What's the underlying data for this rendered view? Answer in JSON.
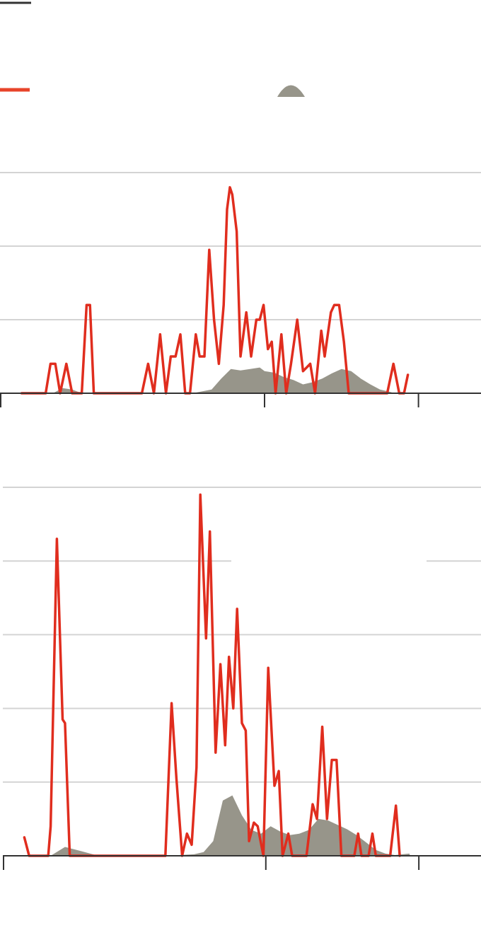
{
  "colors": {
    "line": "#e02d1e",
    "area": "#97958a",
    "grid": "#d4d4d4",
    "axis": "#333333",
    "legend_swatch_black": "#333333",
    "legend_swatch_red": "#e8442a"
  },
  "legend": {
    "items": [
      {
        "swatch": "black-line",
        "label": ""
      },
      {
        "swatch": "red-line",
        "label": ""
      },
      {
        "swatch": "gray-area",
        "label": ""
      }
    ]
  },
  "chart_data": [
    {
      "type": "line",
      "title": "",
      "xlabel": "",
      "ylabel": "",
      "ylim": [
        0,
        3
      ],
      "xlim": [
        0,
        100
      ],
      "grid": true,
      "x_ticks": [
        0,
        55,
        87
      ],
      "series": [
        {
          "kind": "line",
          "color": "#e02d1e",
          "points": [
            [
              4.5,
              0
            ],
            [
              9.5,
              0
            ],
            [
              10.5,
              0.4
            ],
            [
              11.5,
              0.4
            ],
            [
              12.5,
              0
            ],
            [
              13.8,
              0.4
            ],
            [
              15,
              0
            ],
            [
              17,
              0
            ],
            [
              18,
              1.2
            ],
            [
              18.7,
              1.2
            ],
            [
              19.5,
              0
            ],
            [
              29.5,
              0
            ],
            [
              30.8,
              0.4
            ],
            [
              32,
              0
            ],
            [
              33.3,
              0.8
            ],
            [
              34.5,
              0
            ],
            [
              35.5,
              0.5
            ],
            [
              36.5,
              0.5
            ],
            [
              37.5,
              0.8
            ],
            [
              38.5,
              0
            ],
            [
              39.5,
              0
            ],
            [
              40.7,
              0.8
            ],
            [
              41.5,
              0.5
            ],
            [
              42.5,
              0.5
            ],
            [
              43.5,
              1.95
            ],
            [
              44.5,
              1
            ],
            [
              45.5,
              0.4
            ],
            [
              46.5,
              1.2
            ],
            [
              47.2,
              2.5
            ],
            [
              47.8,
              2.8
            ],
            [
              48.3,
              2.7
            ],
            [
              49.2,
              2.2
            ],
            [
              50,
              0.5
            ],
            [
              51.2,
              1.1
            ],
            [
              52.2,
              0.5
            ],
            [
              53.3,
              1.0
            ],
            [
              54,
              1.0
            ],
            [
              54.8,
              1.2
            ],
            [
              55.7,
              0.6
            ],
            [
              56.5,
              0.7
            ],
            [
              57.3,
              0
            ],
            [
              58.5,
              0.8
            ],
            [
              59.5,
              0
            ],
            [
              60.5,
              0.4
            ],
            [
              61.8,
              1.0
            ],
            [
              63,
              0.3
            ],
            [
              64.5,
              0.4
            ],
            [
              65.5,
              0
            ],
            [
              66.8,
              0.85
            ],
            [
              67.5,
              0.5
            ],
            [
              68.8,
              1.1
            ],
            [
              69.5,
              1.2
            ],
            [
              70.5,
              1.2
            ],
            [
              71.5,
              0.7
            ],
            [
              72.5,
              0
            ],
            [
              80.5,
              0
            ],
            [
              81.8,
              0.4
            ],
            [
              83,
              0
            ],
            [
              84,
              0
            ],
            [
              84.8,
              0.25
            ]
          ]
        },
        {
          "kind": "area",
          "color": "#97958a",
          "points": [
            [
              4.5,
              0
            ],
            [
              11,
              0
            ],
            [
              13,
              0.07
            ],
            [
              15,
              0.05
            ],
            [
              17,
              0
            ],
            [
              40,
              0
            ],
            [
              44,
              0.05
            ],
            [
              46,
              0.2
            ],
            [
              48,
              0.33
            ],
            [
              50,
              0.31
            ],
            [
              52,
              0.33
            ],
            [
              54,
              0.35
            ],
            [
              55,
              0.3
            ],
            [
              57,
              0.28
            ],
            [
              59,
              0.22
            ],
            [
              61,
              0.18
            ],
            [
              63,
              0.12
            ],
            [
              65,
              0.15
            ],
            [
              67,
              0.2
            ],
            [
              69,
              0.27
            ],
            [
              71,
              0.33
            ],
            [
              73,
              0.3
            ],
            [
              75,
              0.2
            ],
            [
              77,
              0.12
            ],
            [
              79,
              0.05
            ],
            [
              81,
              0.02
            ],
            [
              82,
              0
            ]
          ]
        }
      ]
    },
    {
      "type": "line",
      "title": "",
      "xlabel": "",
      "ylabel": "",
      "ylim": [
        0,
        5
      ],
      "xlim": [
        0,
        100
      ],
      "grid": true,
      "x_ticks": [
        0,
        55,
        87
      ],
      "series": [
        {
          "kind": "line",
          "color": "#e02d1e",
          "points": [
            [
              4.5,
              0.25
            ],
            [
              5.5,
              0
            ],
            [
              9.5,
              0
            ],
            [
              10,
              0.4
            ],
            [
              11.3,
              4.3
            ],
            [
              12.5,
              1.85
            ],
            [
              13,
              1.8
            ],
            [
              14,
              0
            ],
            [
              34,
              0
            ],
            [
              35.3,
              2.07
            ],
            [
              36.3,
              1.05
            ],
            [
              37.5,
              0
            ],
            [
              38.5,
              0.3
            ],
            [
              39.5,
              0.15
            ],
            [
              40.5,
              1.2
            ],
            [
              41.3,
              4.9
            ],
            [
              42.5,
              2.95
            ],
            [
              43.3,
              4.4
            ],
            [
              44.5,
              1.4
            ],
            [
              45.5,
              2.6
            ],
            [
              46.5,
              1.5
            ],
            [
              47.3,
              2.7
            ],
            [
              48.2,
              2.0
            ],
            [
              49,
              3.35
            ],
            [
              50,
              1.8
            ],
            [
              50.8,
              1.7
            ],
            [
              51.5,
              0.2
            ],
            [
              52.5,
              0.45
            ],
            [
              53.3,
              0.4
            ],
            [
              54.5,
              0
            ],
            [
              55.5,
              2.55
            ],
            [
              56.8,
              0.95
            ],
            [
              57.7,
              1.15
            ],
            [
              58.5,
              0
            ],
            [
              59.7,
              0.3
            ],
            [
              60.5,
              0
            ],
            [
              63.5,
              0
            ],
            [
              64.8,
              0.7
            ],
            [
              65.7,
              0.5
            ],
            [
              66.8,
              1.75
            ],
            [
              67.8,
              0.5
            ],
            [
              68.8,
              1.3
            ],
            [
              69.8,
              1.3
            ],
            [
              70.8,
              0
            ],
            [
              73.5,
              0
            ],
            [
              74.3,
              0.3
            ],
            [
              75,
              0
            ],
            [
              76.5,
              0
            ],
            [
              77.3,
              0.3
            ],
            [
              78,
              0
            ],
            [
              81,
              0
            ],
            [
              82.2,
              0.68
            ],
            [
              83,
              0
            ]
          ]
        },
        {
          "kind": "area",
          "color": "#97958a",
          "points": [
            [
              4.5,
              0
            ],
            [
              10,
              0
            ],
            [
              13,
              0.12
            ],
            [
              16,
              0.07
            ],
            [
              20,
              0
            ],
            [
              34,
              0
            ],
            [
              40,
              0.02
            ],
            [
              42,
              0.05
            ],
            [
              44,
              0.2
            ],
            [
              46,
              0.75
            ],
            [
              48,
              0.82
            ],
            [
              50,
              0.55
            ],
            [
              52,
              0.35
            ],
            [
              54,
              0.3
            ],
            [
              56,
              0.4
            ],
            [
              58,
              0.33
            ],
            [
              60,
              0.28
            ],
            [
              62,
              0.3
            ],
            [
              64,
              0.35
            ],
            [
              66,
              0.5
            ],
            [
              68,
              0.48
            ],
            [
              70,
              0.42
            ],
            [
              72,
              0.36
            ],
            [
              74,
              0.28
            ],
            [
              76,
              0.18
            ],
            [
              78,
              0.08
            ],
            [
              80,
              0.03
            ],
            [
              82,
              0.01
            ],
            [
              85,
              0.03
            ],
            [
              85.2,
              0
            ]
          ]
        }
      ]
    }
  ]
}
